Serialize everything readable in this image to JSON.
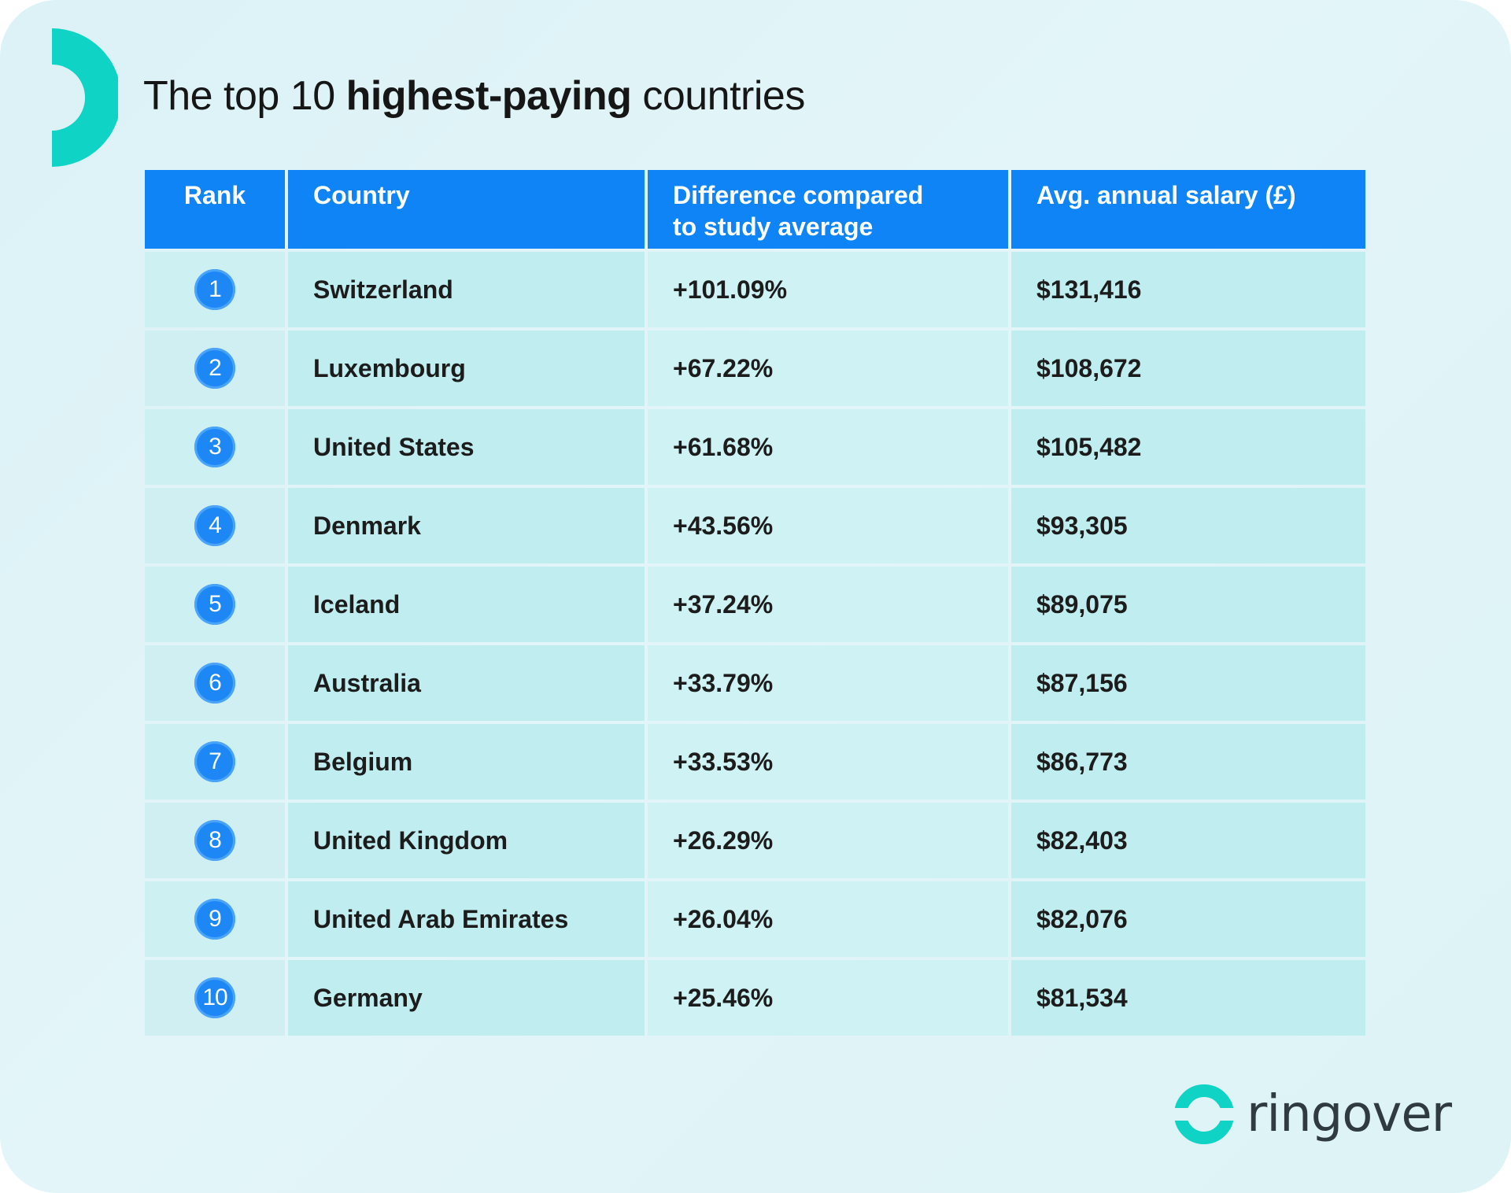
{
  "title": {
    "prefix": "The top 10",
    "emphasis": "highest-paying",
    "suffix": "countries"
  },
  "chart_data": {
    "type": "table",
    "title": "The top 10 highest-paying countries",
    "columns": [
      "Rank",
      "Country",
      "Difference compared to study average",
      "Avg. annual salary (£)"
    ],
    "rows": [
      {
        "rank": "1",
        "country": "Switzerland",
        "difference": "+101.09%",
        "salary": "$131,416"
      },
      {
        "rank": "2",
        "country": "Luxembourg",
        "difference": "+67.22%",
        "salary": "$108,672"
      },
      {
        "rank": "3",
        "country": "United States",
        "difference": "+61.68%",
        "salary": "$105,482"
      },
      {
        "rank": "4",
        "country": "Denmark",
        "difference": "+43.56%",
        "salary": "$93,305"
      },
      {
        "rank": "5",
        "country": "Iceland",
        "difference": "+37.24%",
        "salary": "$89,075"
      },
      {
        "rank": "6",
        "country": "Australia",
        "difference": "+33.79%",
        "salary": "$87,156"
      },
      {
        "rank": "7",
        "country": "Belgium",
        "difference": "+33.53%",
        "salary": "$86,773"
      },
      {
        "rank": "8",
        "country": "United Kingdom",
        "difference": "+26.29%",
        "salary": "$82,403"
      },
      {
        "rank": "9",
        "country": "United Arab Emirates",
        "difference": "+26.04%",
        "salary": "$82,076"
      },
      {
        "rank": "10",
        "country": "Germany",
        "difference": "+25.46%",
        "salary": "$81,534"
      }
    ]
  },
  "table": {
    "headers": {
      "rank": "Rank",
      "country": "Country",
      "difference_line1": "Difference compared",
      "difference_line2": "to study average",
      "salary": "Avg. annual salary (£)"
    }
  },
  "brand": {
    "name": "ringover",
    "accent_color": "#0fd3c4",
    "header_color": "#0f84f6"
  }
}
